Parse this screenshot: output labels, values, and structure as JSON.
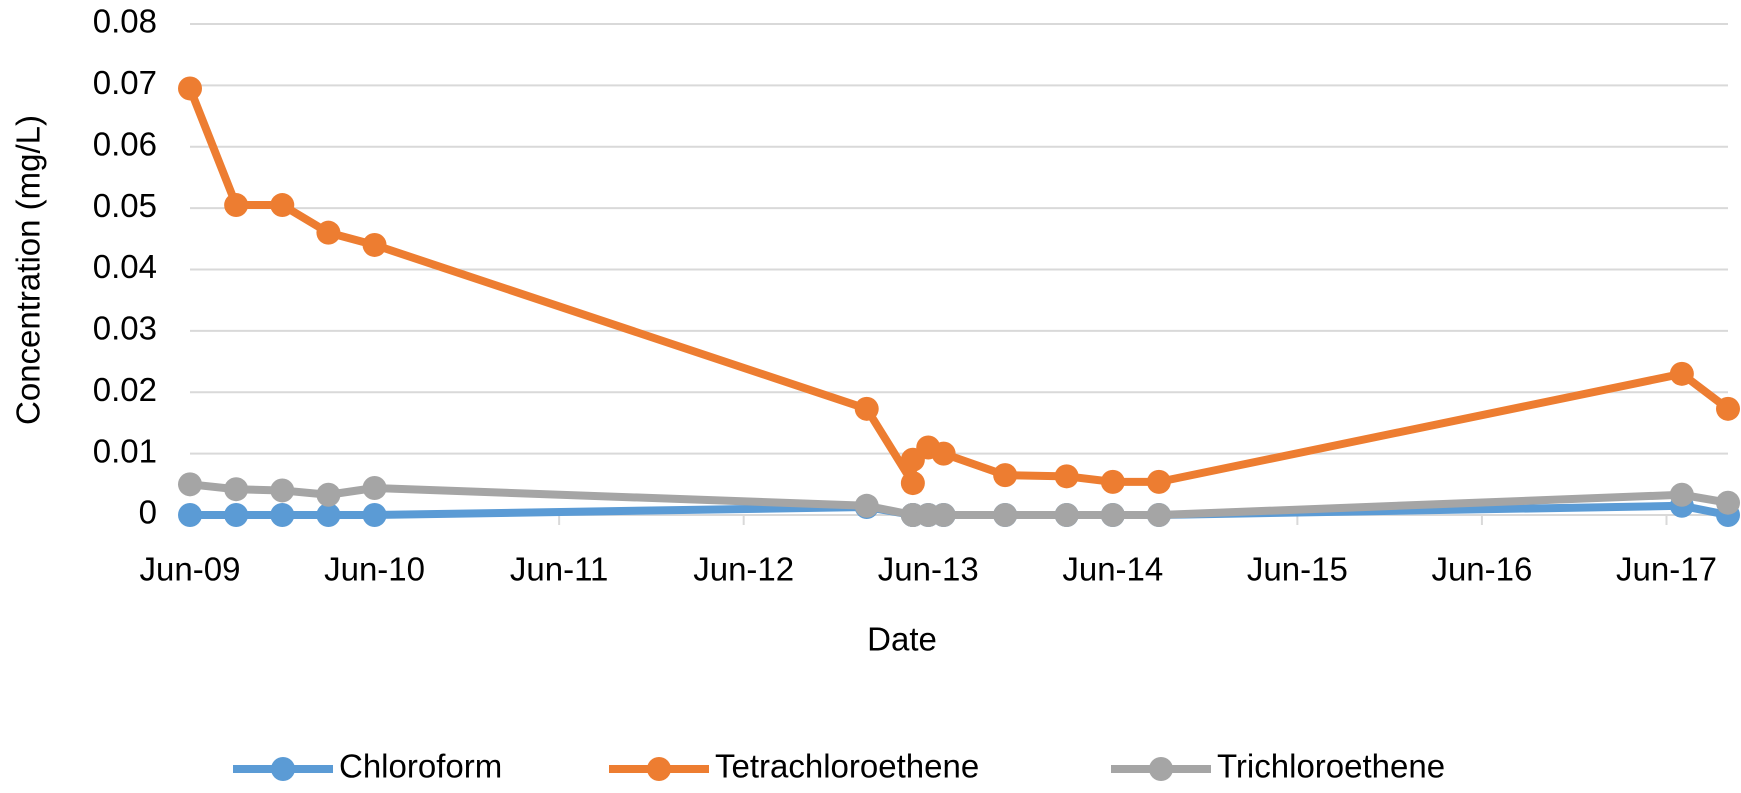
{
  "chart_data": {
    "type": "line",
    "x_label": "Date",
    "y_label": "Concentration (mg/L)",
    "x": [
      "2009-06",
      "2009-09",
      "2009-12",
      "2010-03",
      "2010-06",
      "2013-02",
      "2013-05",
      "2013-05",
      "2013-06",
      "2013-07",
      "2013-11",
      "2014-03",
      "2014-06",
      "2014-09",
      "2017-07",
      "2017-10"
    ],
    "series": [
      {
        "name": "Chloroform",
        "color": "#5b9bd5",
        "values": [
          0,
          0,
          0,
          0,
          0,
          0.0013,
          0,
          0,
          0,
          0,
          0,
          0,
          0,
          0,
          0.0015,
          0
        ]
      },
      {
        "name": "Tetrachloroethene",
        "color": "#ed7d31",
        "values": [
          0.0695,
          0.0505,
          0.0505,
          0.046,
          0.044,
          0.0173,
          0.0052,
          0.009,
          0.011,
          0.01,
          0.0065,
          0.0063,
          0.0054,
          0.0054,
          0.023,
          0.0173
        ]
      },
      {
        "name": "Trichloroethene",
        "color": "#a5a5a5",
        "values": [
          0.005,
          0.0042,
          0.004,
          0.0033,
          0.0044,
          0.0015,
          0,
          0,
          0,
          0,
          0,
          0,
          0,
          0,
          0.0033,
          0.002
        ]
      }
    ],
    "xlim": [
      "2009-06",
      "2017-10"
    ],
    "xticks": [
      {
        "value": "2009-06",
        "label": "Jun-09"
      },
      {
        "value": "2010-06",
        "label": "Jun-10"
      },
      {
        "value": "2011-06",
        "label": "Jun-11"
      },
      {
        "value": "2012-06",
        "label": "Jun-12"
      },
      {
        "value": "2013-06",
        "label": "Jun-13"
      },
      {
        "value": "2014-06",
        "label": "Jun-14"
      },
      {
        "value": "2015-06",
        "label": "Jun-15"
      },
      {
        "value": "2016-06",
        "label": "Jun-16"
      },
      {
        "value": "2017-06",
        "label": "Jun-17"
      }
    ],
    "ylim": [
      0,
      0.08
    ],
    "yticks": [
      0,
      0.01,
      0.02,
      0.03,
      0.04,
      0.05,
      0.06,
      0.07,
      0.08
    ],
    "grid": true,
    "legend": "bottom"
  }
}
